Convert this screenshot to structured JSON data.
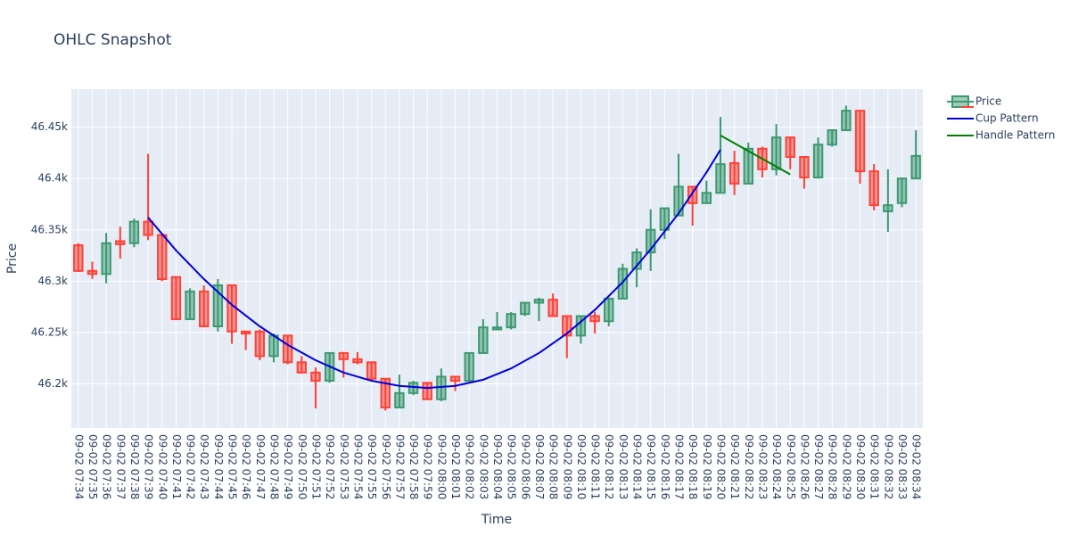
{
  "chart_data": {
    "type": "candlestick",
    "title": "OHLC Snapshot",
    "x_label": "Time",
    "y_label": "Price",
    "categories": [
      "09-02 07:34",
      "09-02 07:35",
      "09-02 07:36",
      "09-02 07:37",
      "09-02 07:38",
      "09-02 07:39",
      "09-02 07:40",
      "09-02 07:41",
      "09-02 07:42",
      "09-02 07:43",
      "09-02 07:44",
      "09-02 07:45",
      "09-02 07:46",
      "09-02 07:47",
      "09-02 07:48",
      "09-02 07:49",
      "09-02 07:50",
      "09-02 07:51",
      "09-02 07:52",
      "09-02 07:53",
      "09-02 07:54",
      "09-02 07:55",
      "09-02 07:56",
      "09-02 07:57",
      "09-02 07:58",
      "09-02 07:59",
      "09-02 08:00",
      "09-02 08:01",
      "09-02 08:02",
      "09-02 08:03",
      "09-02 08:04",
      "09-02 08:05",
      "09-02 08:06",
      "09-02 08:07",
      "09-02 08:08",
      "09-02 08:09",
      "09-02 08:10",
      "09-02 08:11",
      "09-02 08:12",
      "09-02 08:13",
      "09-02 08:14",
      "09-02 08:15",
      "09-02 08:16",
      "09-02 08:17",
      "09-02 08:18",
      "09-02 08:19",
      "09-02 08:20",
      "09-02 08:21",
      "09-02 08:22",
      "09-02 08:23",
      "09-02 08:24",
      "09-02 08:25",
      "09-02 08:26",
      "09-02 08:27",
      "09-02 08:28",
      "09-02 08:29",
      "09-02 08:30",
      "09-02 08:31",
      "09-02 08:32",
      "09-02 08:33",
      "09-02 08:34"
    ],
    "series": [
      {
        "name": "Price",
        "type": "candlestick",
        "increasing_color": "#3D9970",
        "decreasing_color": "#FF4136",
        "open": [
          46335,
          46310,
          46307,
          46339,
          46337,
          46358,
          46345,
          46304,
          46263,
          46290,
          46256,
          46296,
          46251,
          46251,
          46227,
          46247,
          46221,
          46211,
          46203,
          46230,
          46224,
          46221,
          46205,
          46177,
          46191,
          46201,
          46185,
          46207,
          46203,
          46230,
          46253,
          46255,
          46268,
          46279,
          46282,
          46266,
          46247,
          46266,
          46261,
          46283,
          46312,
          46328,
          46350,
          46364,
          46392,
          46376,
          46386,
          46415,
          46395,
          46429,
          46409,
          46440,
          46421,
          46401,
          46433,
          46447,
          46466,
          46407,
          46368,
          46376,
          46400
        ],
        "high": [
          46337,
          46319,
          46347,
          46353,
          46361,
          46424,
          46345,
          46304,
          46293,
          46296,
          46302,
          46296,
          46251,
          46253,
          46249,
          46247,
          46227,
          46216,
          46230,
          46231,
          46231,
          46221,
          46205,
          46209,
          46203,
          46201,
          46215,
          46207,
          46230,
          46263,
          46270,
          46270,
          46279,
          46284,
          46288,
          46266,
          46266,
          46270,
          46283,
          46317,
          46332,
          46370,
          46371,
          46424,
          46392,
          46398,
          46460,
          46427,
          46435,
          46431,
          46453,
          46440,
          46421,
          46440,
          46447,
          46471,
          46466,
          46414,
          46409,
          46400,
          46447
        ],
        "low": [
          46309,
          46302,
          46298,
          46322,
          46333,
          46340,
          46300,
          46262,
          46262,
          46256,
          46251,
          46239,
          46233,
          46223,
          46221,
          46219,
          46210,
          46176,
          46201,
          46206,
          46219,
          46203,
          46174,
          46177,
          46189,
          46185,
          46183,
          46193,
          46201,
          46230,
          46253,
          46253,
          46266,
          46261,
          46266,
          46225,
          46239,
          46249,
          46256,
          46283,
          46294,
          46310,
          46341,
          46364,
          46354,
          46376,
          46386,
          46384,
          46395,
          46401,
          46403,
          46409,
          46390,
          46400,
          46431,
          46447,
          46395,
          46369,
          46348,
          46372,
          46400
        ],
        "close": [
          46310,
          46307,
          46337,
          46336,
          46358,
          46345,
          46302,
          46263,
          46290,
          46256,
          46296,
          46251,
          46249,
          46227,
          46247,
          46221,
          46211,
          46203,
          46230,
          46224,
          46221,
          46205,
          46177,
          46191,
          46201,
          46185,
          46207,
          46203,
          46230,
          46255,
          46255,
          46268,
          46279,
          46282,
          46266,
          46247,
          46266,
          46261,
          46283,
          46312,
          46328,
          46350,
          46371,
          46392,
          46376,
          46386,
          46414,
          46395,
          46429,
          46409,
          46440,
          46421,
          46401,
          46433,
          46447,
          46466,
          46407,
          46374,
          46374,
          46400,
          46422
        ]
      },
      {
        "name": "Cup Pattern",
        "type": "line",
        "color": "#0000dd",
        "x": [
          "09-02 07:39",
          "09-02 07:41",
          "09-02 07:43",
          "09-02 07:45",
          "09-02 07:47",
          "09-02 07:49",
          "09-02 07:51",
          "09-02 07:53",
          "09-02 07:55",
          "09-02 07:57",
          "09-02 07:59",
          "09-02 08:01",
          "09-02 08:03",
          "09-02 08:05",
          "09-02 08:07",
          "09-02 08:09",
          "09-02 08:11",
          "09-02 08:13",
          "09-02 08:15",
          "09-02 08:17",
          "09-02 08:19",
          "09-02 08:20"
        ],
        "values": [
          46362,
          46330,
          46302,
          46277,
          46256,
          46238,
          46223,
          46211,
          46203,
          46198,
          46196,
          46198,
          46204,
          46215,
          46230,
          46249,
          46272,
          46299,
          46331,
          46366,
          46406,
          46428
        ]
      },
      {
        "name": "Handle Pattern",
        "type": "line",
        "color": "#008000",
        "x": [
          "09-02 08:20",
          "09-02 08:25"
        ],
        "values": [
          46442,
          46404
        ]
      }
    ],
    "ylim": [
      46157,
      46487
    ],
    "yticks": [
      {
        "value": 46200,
        "label": "46.2k"
      },
      {
        "value": 46250,
        "label": "46.25k"
      },
      {
        "value": 46300,
        "label": "46.3k"
      },
      {
        "value": 46350,
        "label": "46.35k"
      },
      {
        "value": 46400,
        "label": "46.4k"
      },
      {
        "value": 46450,
        "label": "46.45k"
      }
    ],
    "grid": true,
    "legend": "top-right"
  }
}
